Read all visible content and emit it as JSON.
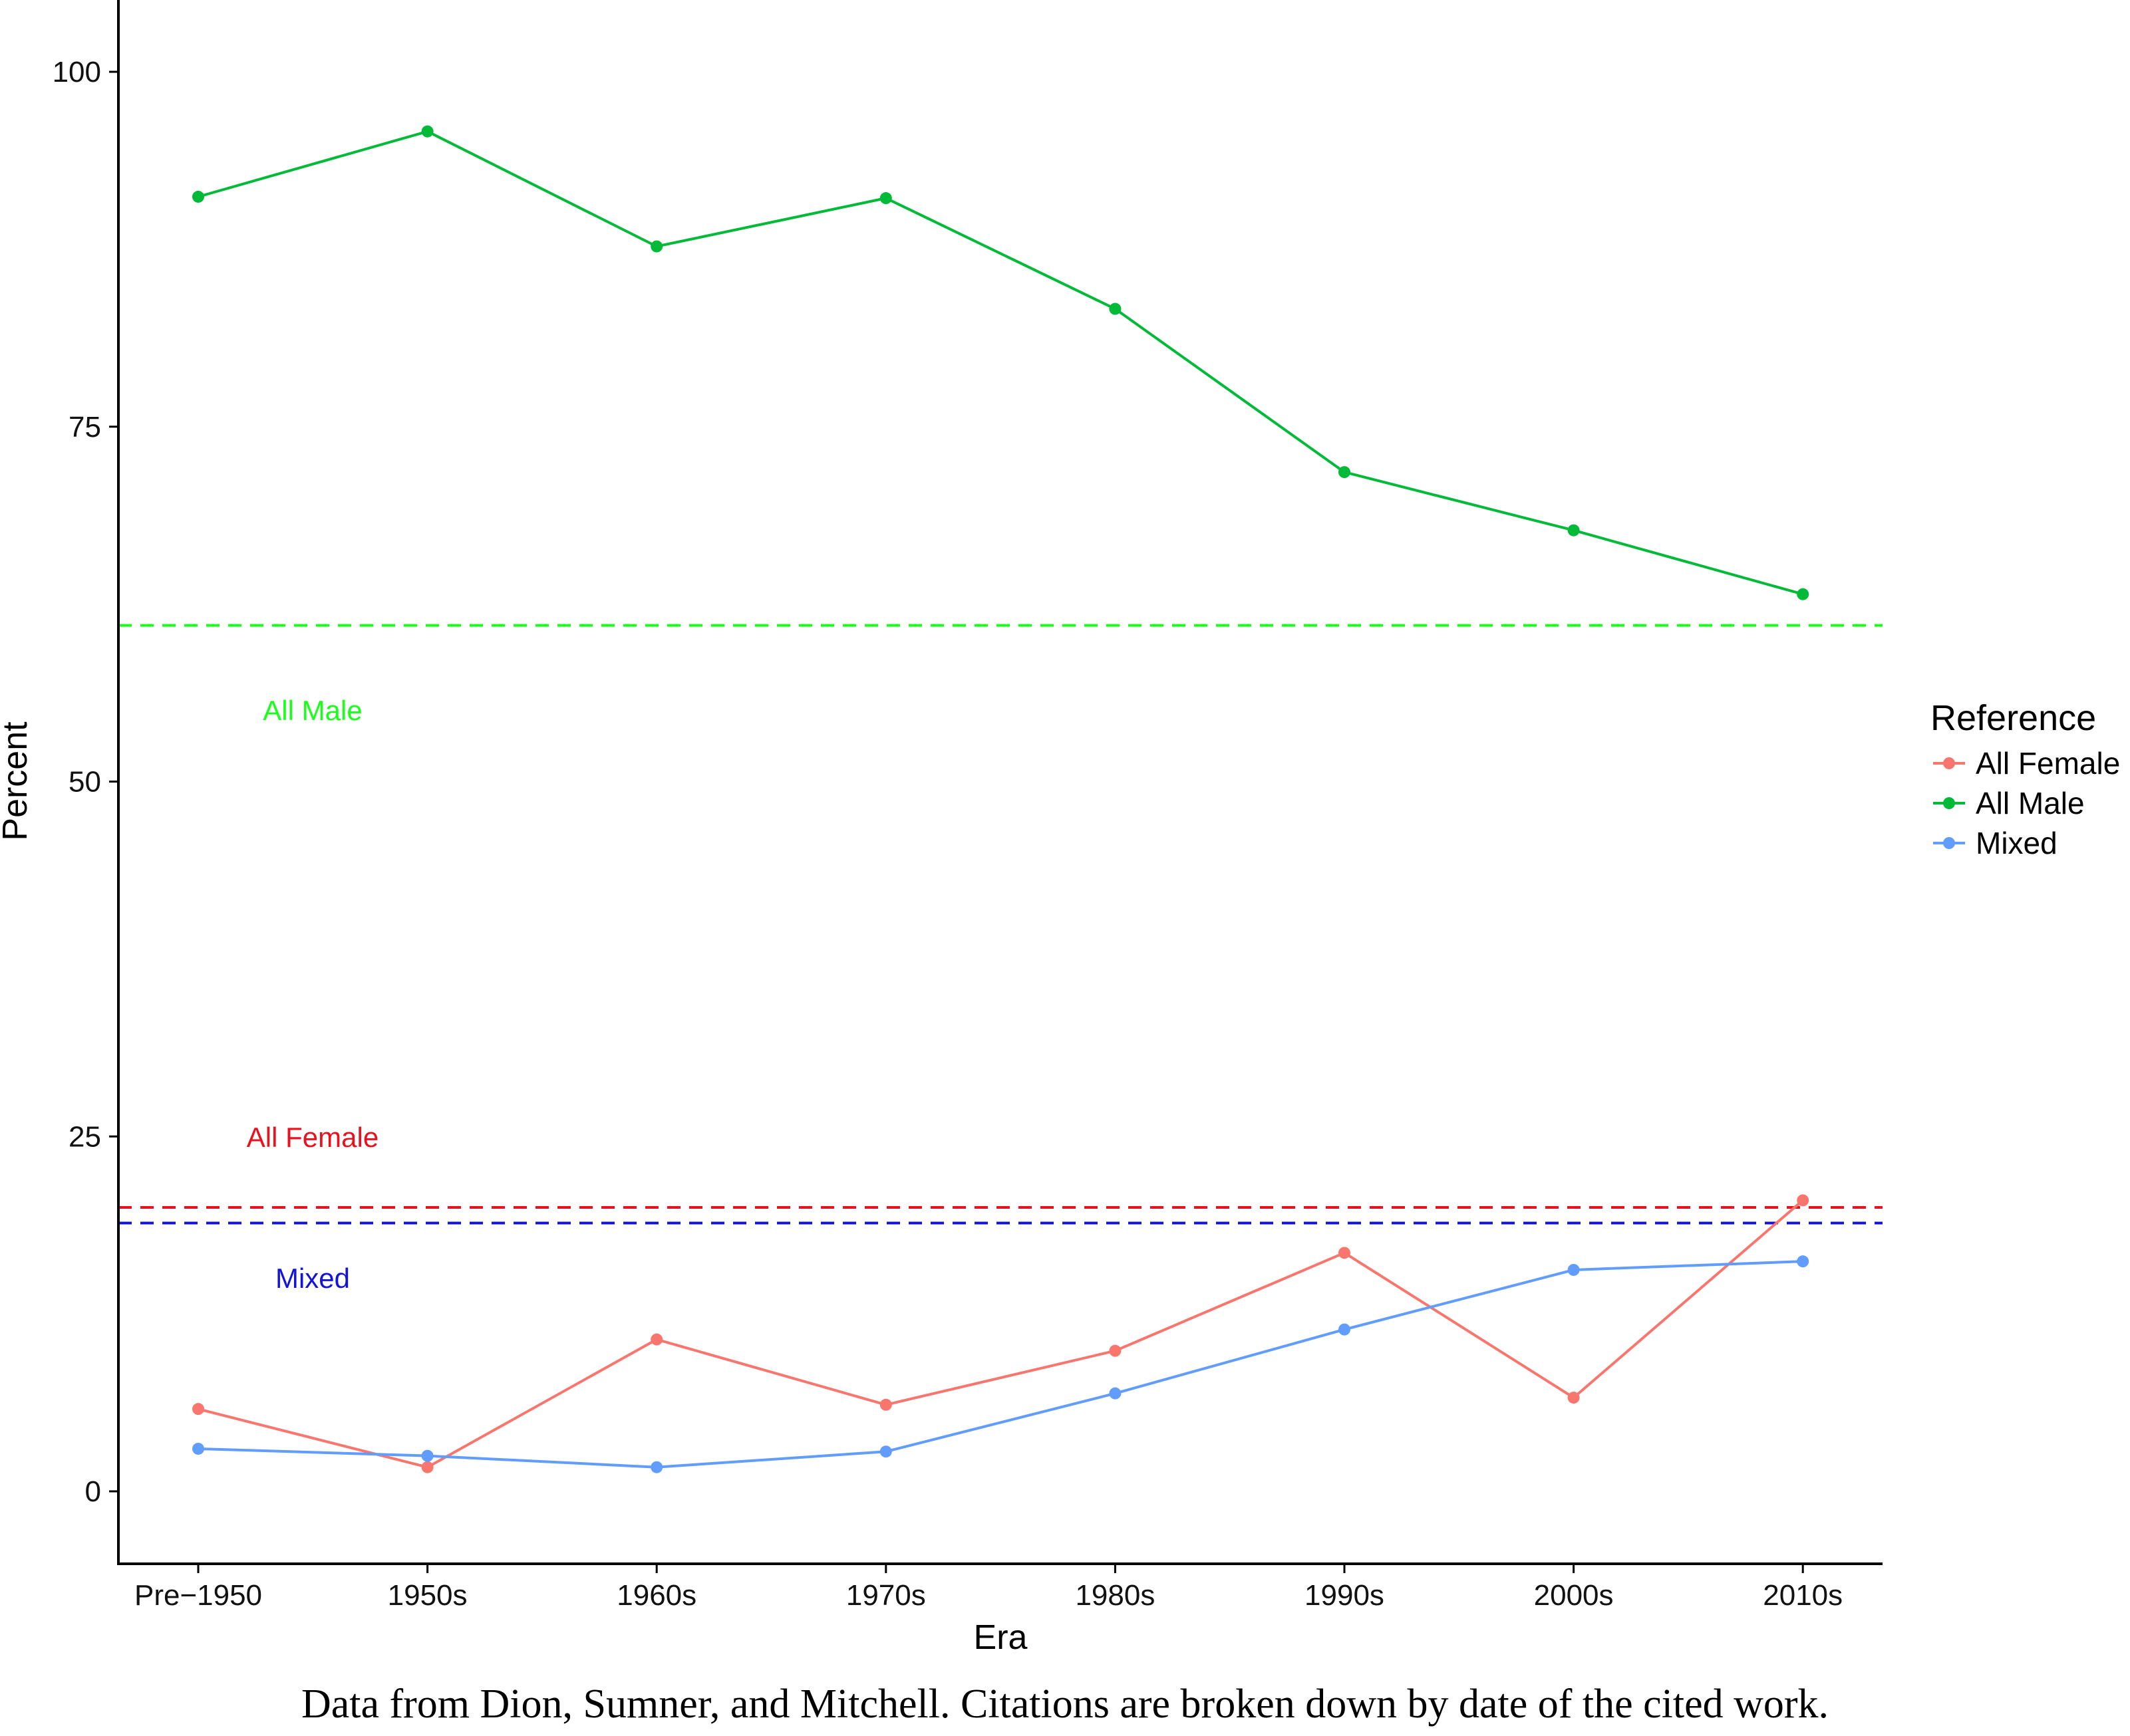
{
  "chart_data": {
    "type": "line",
    "title": "",
    "xlabel": "Era",
    "ylabel": "Percent",
    "categories": [
      "Pre−1950",
      "1950s",
      "1960s",
      "1970s",
      "1980s",
      "1990s",
      "2000s",
      "2010s"
    ],
    "y_ticks": [
      "0",
      "25",
      "50",
      "75",
      "100"
    ],
    "ylim": [
      -5,
      105
    ],
    "grid": false,
    "legend": {
      "title": "Reference",
      "placement": "right",
      "entries": [
        "All Female",
        "All Male",
        "Mixed"
      ]
    },
    "series": [
      {
        "name": "All Female",
        "color": "#f8766d",
        "values": [
          5.8,
          1.7,
          10.7,
          6.1,
          9.9,
          16.8,
          6.6,
          20.5
        ]
      },
      {
        "name": "All Male",
        "color": "#00ba38",
        "values": [
          91.2,
          95.8,
          87.7,
          91.1,
          83.3,
          71.8,
          67.7,
          63.2
        ]
      },
      {
        "name": "Mixed",
        "color": "#619cff",
        "values": [
          3.0,
          2.5,
          1.7,
          2.8,
          6.9,
          11.4,
          15.6,
          16.2
        ]
      }
    ],
    "reference_lines": [
      {
        "label": "All Male",
        "value": 61.0,
        "color": "#1aff1a",
        "dashed": true
      },
      {
        "label": "All Female",
        "value": 20.0,
        "color": "#e8121f",
        "dashed": true
      },
      {
        "label": "Mixed",
        "value": 18.9,
        "color": "#1313d9",
        "dashed": true
      }
    ]
  },
  "caption": "Data from Dion, Sumner, and Mitchell. Citations are broken down by date of the cited work."
}
